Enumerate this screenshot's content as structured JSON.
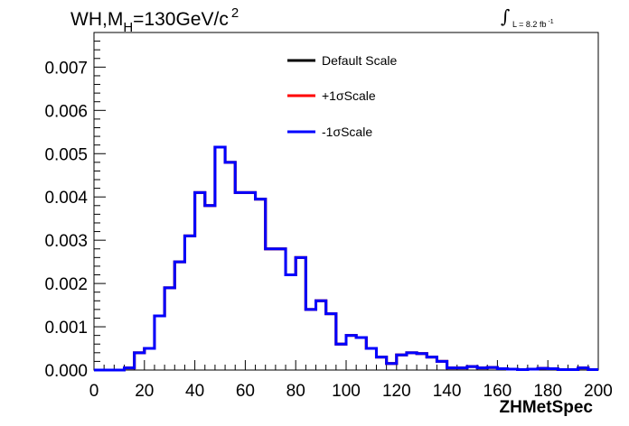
{
  "chart_data": {
    "type": "line",
    "title": {
      "prefix": "WH,M",
      "subscript": "H",
      "suffix": "=130GeV/c",
      "superscript": "2"
    },
    "luminosity": {
      "integral_symbol": "∫",
      "text": "L = 8.2 fb",
      "superscript": "-1"
    },
    "xlabel": "ZHMetSpec",
    "ylabel": "",
    "xlim": [
      0,
      200
    ],
    "ylim": [
      0,
      0.0078
    ],
    "x_ticks": [
      "0",
      "20",
      "40",
      "60",
      "80",
      "100",
      "120",
      "140",
      "160",
      "180",
      "200"
    ],
    "y_ticks": [
      "0.000",
      "0.001",
      "0.002",
      "0.003",
      "0.004",
      "0.005",
      "0.006",
      "0.007"
    ],
    "bin_edges": [
      0,
      4,
      8,
      12,
      16,
      20,
      24,
      28,
      32,
      36,
      40,
      44,
      48,
      52,
      56,
      60,
      64,
      68,
      72,
      76,
      80,
      84,
      88,
      92,
      96,
      100,
      104,
      108,
      112,
      116,
      120,
      124,
      128,
      132,
      136,
      140,
      144,
      148,
      152,
      156,
      160,
      164,
      168,
      172,
      176,
      180,
      184,
      188,
      192,
      196,
      200
    ],
    "series": [
      {
        "name": "Default Scale",
        "color": "#000000",
        "values": [
          0,
          0,
          0,
          5e-05,
          0.0004,
          0.0005,
          0.00125,
          0.0019,
          0.0025,
          0.0031,
          0.0041,
          0.0038,
          0.00515,
          0.0048,
          0.0041,
          0.0041,
          0.00395,
          0.0028,
          0.0028,
          0.0022,
          0.0026,
          0.0014,
          0.0016,
          0.0013,
          0.0006,
          0.0008,
          0.00075,
          0.0005,
          0.0003,
          0.00015,
          0.00035,
          0.0004,
          0.00038,
          0.0003,
          0.0002,
          5e-05,
          5e-05,
          8e-05,
          5e-05,
          6e-05,
          3e-05,
          2e-05,
          1e-05,
          2e-05,
          4e-05,
          3e-05,
          1e-05,
          1e-05,
          5e-05,
          1e-05
        ]
      },
      {
        "name": "+1σScale",
        "color": "#ff0000",
        "values": [
          0,
          0,
          0,
          5e-05,
          0.0004,
          0.0005,
          0.00125,
          0.0019,
          0.0025,
          0.0031,
          0.0041,
          0.0038,
          0.00515,
          0.0048,
          0.0041,
          0.0041,
          0.00395,
          0.0028,
          0.0028,
          0.0022,
          0.0026,
          0.0014,
          0.0016,
          0.0013,
          0.0006,
          0.0008,
          0.00075,
          0.0005,
          0.0003,
          0.00015,
          0.00035,
          0.0004,
          0.00038,
          0.0003,
          0.0002,
          5e-05,
          5e-05,
          8e-05,
          5e-05,
          6e-05,
          3e-05,
          2e-05,
          1e-05,
          2e-05,
          4e-05,
          3e-05,
          1e-05,
          1e-05,
          5e-05,
          1e-05
        ]
      },
      {
        "name": "-1σScale",
        "color": "#0000ff",
        "values": [
          0,
          0,
          0,
          5e-05,
          0.0004,
          0.0005,
          0.00125,
          0.0019,
          0.0025,
          0.0031,
          0.0041,
          0.0038,
          0.00515,
          0.0048,
          0.0041,
          0.0041,
          0.00395,
          0.0028,
          0.0028,
          0.0022,
          0.0026,
          0.0014,
          0.0016,
          0.0013,
          0.0006,
          0.0008,
          0.00075,
          0.0005,
          0.0003,
          0.00015,
          0.00035,
          0.0004,
          0.00038,
          0.0003,
          0.0002,
          5e-05,
          5e-05,
          8e-05,
          5e-05,
          6e-05,
          3e-05,
          2e-05,
          1e-05,
          2e-05,
          4e-05,
          3e-05,
          1e-05,
          1e-05,
          5e-05,
          1e-05
        ]
      }
    ],
    "legend_position": "top-center",
    "grid": false
  }
}
